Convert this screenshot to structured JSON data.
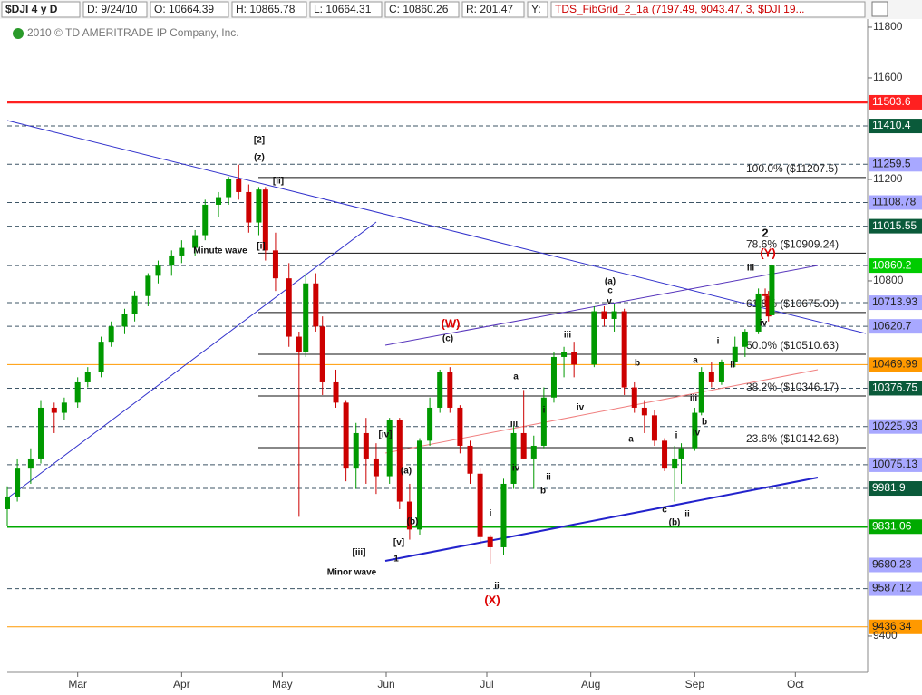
{
  "chart_data": {
    "type": "candlestick",
    "title": "$DJI 4 y D",
    "info": [
      "D: 9/24/10",
      "O: 10664.39",
      "H: 10865.78",
      "L: 10664.31",
      "C: 10860.26",
      "R: 201.47",
      "Y:"
    ],
    "study": "TDS_FibGrid_2_1a (7197.49, 9043.47, 3, $DJI 19...",
    "copyright": "2010 © TD AMERITRADE IP Company, Inc.",
    "up_color": "#009900",
    "down_color": "#cc0000",
    "xlim": [
      39,
      295
    ],
    "ylim": [
      9257,
      11907
    ],
    "xticks": [
      {
        "value": 60,
        "label": "Mar"
      },
      {
        "value": 91,
        "label": "Apr"
      },
      {
        "value": 121,
        "label": "May"
      },
      {
        "value": 152,
        "label": "Jun"
      },
      {
        "value": 182,
        "label": "Jul"
      },
      {
        "value": 213,
        "label": "Aug"
      },
      {
        "value": 244,
        "label": "Sep"
      },
      {
        "value": 274,
        "label": "Oct"
      }
    ],
    "yticks": [
      9400,
      10800,
      11200,
      11600,
      11800
    ],
    "x": [
      39,
      42,
      46,
      49,
      53,
      56,
      60,
      63,
      67,
      70,
      74,
      77,
      81,
      84,
      88,
      91,
      95,
      98,
      102,
      105,
      108,
      111,
      114,
      116,
      119,
      123,
      126,
      128,
      131,
      133,
      137,
      140,
      143,
      146,
      149,
      153,
      156,
      159,
      162,
      165,
      168,
      171,
      174,
      177,
      180,
      183,
      187,
      190,
      193,
      196,
      199,
      202,
      205,
      208,
      214,
      217,
      220,
      223,
      226,
      229,
      232,
      235,
      238,
      240,
      244,
      246,
      249,
      252,
      256,
      259,
      263,
      265,
      266,
      267
    ],
    "open": [
      9900,
      9950,
      10060,
      10100,
      10300,
      10280,
      10320,
      10400,
      10440,
      10560,
      10620,
      10670,
      10740,
      10820,
      10860,
      10900,
      10930,
      10980,
      11100,
      11130,
      11200,
      11150,
      11030,
      11160,
      10920,
      10810,
      10580,
      10520,
      10790,
      10620,
      10400,
      10320,
      10060,
      10200,
      10100,
      10030,
      10250,
      9930,
      9820,
      10170,
      10300,
      10440,
      10300,
      10150,
      10040,
      9790,
      9750,
      10000,
      10200,
      10100,
      10150,
      10340,
      10500,
      10520,
      10470,
      10680,
      10650,
      10680,
      10380,
      10300,
      10270,
      10170,
      10060,
      10100,
      10140,
      10280,
      10440,
      10400,
      10480,
      10540,
      10600,
      10750,
      10740,
      10664.39
    ],
    "high": [
      9990,
      10100,
      10140,
      10330,
      10320,
      10340,
      10420,
      10460,
      10580,
      10640,
      10690,
      10760,
      10830,
      10880,
      10920,
      10960,
      11000,
      11120,
      11150,
      11210,
      11258,
      11180,
      11170,
      11170,
      10990,
      10870,
      10600,
      10830,
      10830,
      10660,
      10450,
      10330,
      10240,
      10260,
      10160,
      10260,
      10260,
      10000,
      10180,
      10340,
      10450,
      10460,
      10310,
      10170,
      10060,
      9800,
      10020,
      10230,
      10370,
      10190,
      10380,
      10520,
      10540,
      10560,
      10700,
      10700,
      10710,
      10690,
      10400,
      10330,
      10290,
      10180,
      10150,
      10160,
      10300,
      10460,
      10480,
      10490,
      10580,
      10610,
      10770,
      10770,
      10760,
      10865.78
    ],
    "low": [
      9835,
      9930,
      10000,
      10080,
      10200,
      10250,
      10300,
      10380,
      10420,
      10540,
      10590,
      10640,
      10700,
      10790,
      10820,
      10870,
      10900,
      10960,
      11050,
      11100,
      11120,
      10990,
      10980,
      10880,
      10760,
      10540,
      9870,
      10500,
      10600,
      10350,
      10300,
      10010,
      9980,
      10000,
      9960,
      10000,
      9900,
      9780,
      9800,
      10150,
      10280,
      10280,
      10120,
      10000,
      9760,
      9686,
      9720,
      9980,
      10100,
      9980,
      10140,
      10320,
      10420,
      10420,
      10460,
      10620,
      10600,
      10350,
      10280,
      10200,
      10150,
      10050,
      9930,
      10000,
      10130,
      10270,
      10380,
      10390,
      10460,
      10500,
      10590,
      10700,
      10640,
      10664.31
    ],
    "close": [
      9950,
      10060,
      10100,
      10300,
      10280,
      10320,
      10400,
      10440,
      10560,
      10620,
      10670,
      10740,
      10820,
      10860,
      10900,
      10930,
      10980,
      11100,
      11130,
      11200,
      11150,
      11030,
      11160,
      10920,
      10810,
      10580,
      10520,
      10790,
      10620,
      10400,
      10320,
      10060,
      10200,
      10100,
      10030,
      10250,
      9930,
      9820,
      10170,
      10300,
      10440,
      10300,
      10150,
      10040,
      9790,
      9750,
      10000,
      10200,
      10100,
      10150,
      10340,
      10500,
      10520,
      10470,
      10680,
      10650,
      10680,
      10380,
      10300,
      10270,
      10170,
      10060,
      10100,
      10140,
      10280,
      10440,
      10400,
      10480,
      10540,
      10600,
      10750,
      10740,
      10660,
      10860.26
    ],
    "levels": [
      {
        "value": 11503.6,
        "label": "11503.6",
        "color": "#ff2020"
      },
      {
        "value": 11410.4,
        "label": "11410.4",
        "color": "#0a5a3a"
      },
      {
        "value": 11259.5,
        "label": "11259.5",
        "color": "#a8a8ff"
      },
      {
        "value": 11108.78,
        "label": "11108.78",
        "color": "#a8a8ff"
      },
      {
        "value": 11015.55,
        "label": "11015.55",
        "color": "#0a5a3a"
      },
      {
        "value": 10860.2,
        "label": "10860.2",
        "color": "#00cc00"
      },
      {
        "value": 10713.93,
        "label": "10713.93",
        "color": "#a8a8ff"
      },
      {
        "value": 10620.7,
        "label": "10620.7",
        "color": "#a8a8ff"
      },
      {
        "value": 10469.99,
        "label": "10469.99",
        "color": "#ff9900"
      },
      {
        "value": 10376.75,
        "label": "10376.75",
        "color": "#0a5a3a"
      },
      {
        "value": 10225.93,
        "label": "10225.93",
        "color": "#a8a8ff"
      },
      {
        "value": 10075.13,
        "label": "10075.13",
        "color": "#a8a8ff"
      },
      {
        "value": 9981.9,
        "label": "9981.9",
        "color": "#0a5a3a"
      },
      {
        "value": 9831.06,
        "label": "9831.06",
        "color": "#00aa00"
      },
      {
        "value": 9680.28,
        "label": "9680.28",
        "color": "#a8a8ff"
      },
      {
        "value": 9587.12,
        "label": "9587.12",
        "color": "#a8a8ff"
      },
      {
        "value": 9436.34,
        "label": "9436.34",
        "color": "#ff9900"
      }
    ],
    "fib": [
      {
        "value": 11207.5,
        "label": "100.0%  ($11207.5)"
      },
      {
        "value": 10909.24,
        "label": "78.6%  ($10909.24)"
      },
      {
        "value": 10675.09,
        "label": "61.8%  ($10675.09)"
      },
      {
        "value": 10510.63,
        "label": "50.0%  ($10510.63)"
      },
      {
        "value": 10346.17,
        "label": "38.2%  ($10346.17)"
      },
      {
        "value": 10142.68,
        "label": "23.6%  ($10142.68)"
      }
    ],
    "annotations": [
      {
        "text": "[2]",
        "color": "#111111"
      },
      {
        "text": "(z)",
        "color": "#111111"
      },
      {
        "text": "[ii]",
        "color": "#111111"
      },
      {
        "text": "[i]",
        "color": "#111111"
      },
      {
        "text": "Minute wave",
        "color": "#111111"
      },
      {
        "text": "(W)",
        "color": "#dd0000"
      },
      {
        "text": "(c)",
        "color": "#111111"
      },
      {
        "text": "(a)",
        "color": "#111111"
      },
      {
        "text": "c",
        "color": "#111111"
      },
      {
        "text": "v",
        "color": "#111111"
      },
      {
        "text": "iii",
        "color": "#111111"
      },
      {
        "text": "iv",
        "color": "#111111"
      },
      {
        "text": "a",
        "color": "#111111"
      },
      {
        "text": "iii",
        "color": "#111111"
      },
      {
        "text": "iv",
        "color": "#111111"
      },
      {
        "text": "b",
        "color": "#111111"
      },
      {
        "text": "ii",
        "color": "#111111"
      },
      {
        "text": "i",
        "color": "#111111"
      },
      {
        "text": "a",
        "color": "#111111"
      },
      {
        "text": "b",
        "color": "#111111"
      },
      {
        "text": "[iv]",
        "color": "#111111"
      },
      {
        "text": "(a)",
        "color": "#111111"
      },
      {
        "text": "(b)",
        "color": "#111111"
      },
      {
        "text": "[v]",
        "color": "#111111"
      },
      {
        "text": "[iii]",
        "color": "#111111"
      },
      {
        "text": "1",
        "color": "#111111"
      },
      {
        "text": "Minor wave",
        "color": "#111111"
      },
      {
        "text": "i",
        "color": "#111111"
      },
      {
        "text": "ii",
        "color": "#111111"
      },
      {
        "text": "(X)",
        "color": "#dd0000"
      },
      {
        "text": "2",
        "color": "#111111"
      },
      {
        "text": "(Y)",
        "color": "#dd0000"
      },
      {
        "text": "iii",
        "color": "#111111"
      },
      {
        "text": "iv",
        "color": "#111111"
      },
      {
        "text": "i",
        "color": "#111111"
      },
      {
        "text": "ii",
        "color": "#111111"
      },
      {
        "text": "a",
        "color": "#111111"
      },
      {
        "text": "iii",
        "color": "#111111"
      },
      {
        "text": "iv",
        "color": "#111111"
      },
      {
        "text": "b",
        "color": "#111111"
      },
      {
        "text": "i",
        "color": "#111111"
      },
      {
        "text": "c",
        "color": "#111111"
      },
      {
        "text": "(b)",
        "color": "#111111"
      },
      {
        "text": "ii",
        "color": "#111111"
      }
    ]
  }
}
